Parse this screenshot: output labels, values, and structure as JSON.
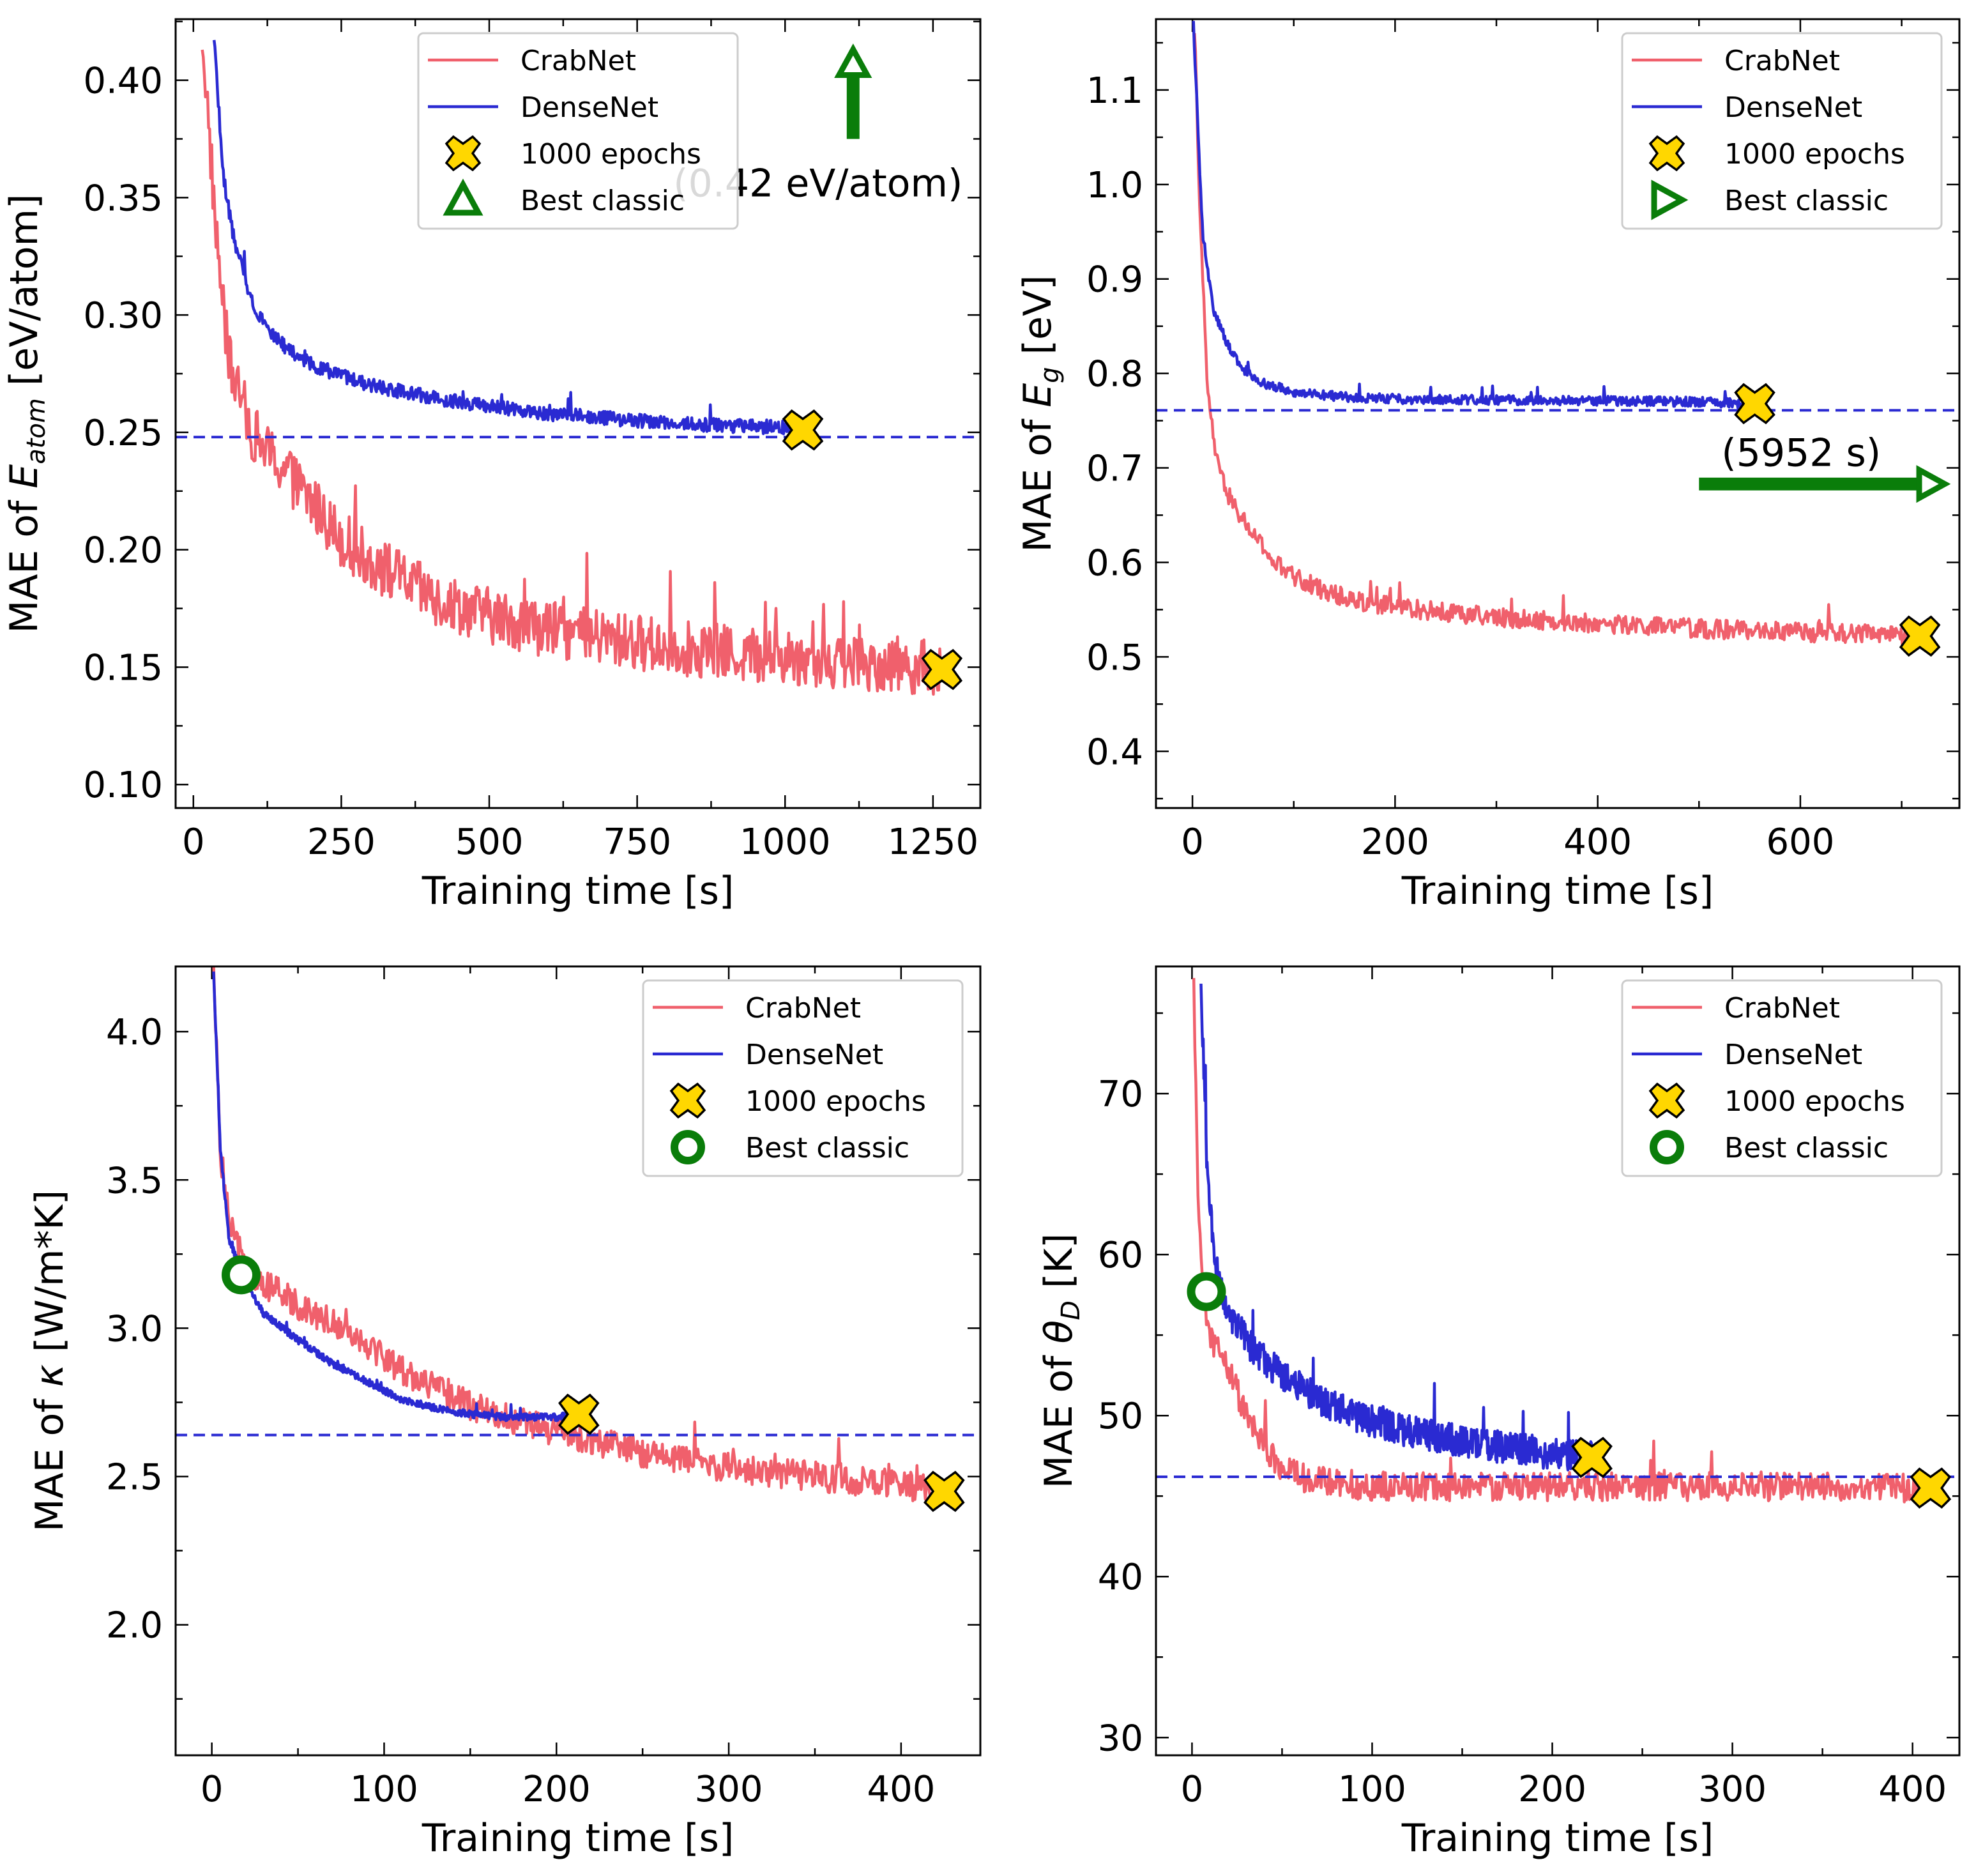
{
  "figure": {
    "colors": {
      "crabnet": "#f0606c",
      "densenet": "#2a2ad2",
      "marker_fill": "#ffd700",
      "classic": "#0a7d0a"
    }
  },
  "chart_data": [
    {
      "type": "line",
      "xlabel": "Training time [s]",
      "ylabel_prefix": "MAE of ",
      "ylabel_sym": "E",
      "ylabel_sub": "atom",
      "ylabel_suffix": " [eV/atom]",
      "xlim": [
        -30,
        1330
      ],
      "ylim": [
        0.09,
        0.426
      ],
      "xticks": [
        0,
        250,
        500,
        750,
        1000,
        1250
      ],
      "xtick_labels": [
        "0",
        "250",
        "500",
        "750",
        "1000",
        "1250"
      ],
      "yticks": [
        0.1,
        0.15,
        0.2,
        0.25,
        0.3,
        0.35,
        0.4
      ],
      "ytick_labels": [
        "0.10",
        "0.15",
        "0.20",
        "0.25",
        "0.30",
        "0.35",
        "0.40"
      ],
      "legend_position": "top-center",
      "legend": [
        "CrabNet",
        "DenseNet",
        "1000 epochs",
        "Best classic"
      ],
      "classic_marker": "triangle-up",
      "series": [
        {
          "name": "CrabNet",
          "x": [
            15,
            40,
            60,
            80,
            100,
            130,
            160,
            200,
            250,
            300,
            350,
            400,
            500,
            600,
            700,
            800,
            900,
            1000,
            1100,
            1200,
            1265
          ],
          "y": [
            0.42,
            0.33,
            0.28,
            0.265,
            0.25,
            0.24,
            0.232,
            0.22,
            0.205,
            0.195,
            0.188,
            0.18,
            0.172,
            0.166,
            0.162,
            0.159,
            0.156,
            0.154,
            0.152,
            0.151,
            0.149
          ],
          "noise": 0.012
        },
        {
          "name": "DenseNet",
          "x": [
            35,
            50,
            70,
            100,
            130,
            160,
            200,
            250,
            300,
            400,
            500,
            600,
            700,
            800,
            900,
            1000,
            1030
          ],
          "y": [
            0.42,
            0.36,
            0.33,
            0.305,
            0.293,
            0.285,
            0.279,
            0.274,
            0.27,
            0.265,
            0.261,
            0.258,
            0.256,
            0.254,
            0.253,
            0.252,
            0.251
          ],
          "noise": 0.003
        }
      ],
      "epochs_markers": [
        {
          "x": 1030,
          "y": 0.251
        },
        {
          "x": 1265,
          "y": 0.149
        }
      ],
      "best_classic_line": 0.248,
      "best_classic_note": "(0.42 eV/atom)",
      "best_classic_arrow": {
        "x": 1115,
        "y_from": 0.375,
        "y_to": 0.412,
        "direction": "up"
      }
    },
    {
      "type": "line",
      "xlabel": "Training time [s]",
      "ylabel_prefix": "MAE of ",
      "ylabel_sym": "E",
      "ylabel_sub": "g",
      "ylabel_suffix": " [eV]",
      "xlim": [
        -36,
        757
      ],
      "ylim": [
        0.34,
        1.175
      ],
      "xticks": [
        0,
        200,
        400,
        600
      ],
      "xtick_labels": [
        "0",
        "200",
        "400",
        "600"
      ],
      "yticks": [
        0.4,
        0.5,
        0.6,
        0.7,
        0.8,
        0.9,
        1.0,
        1.1
      ],
      "ytick_labels": [
        "0.4",
        "0.5",
        "0.6",
        "0.7",
        "0.8",
        "0.9",
        "1.0",
        "1.1"
      ],
      "legend_position": "top-right",
      "legend": [
        "CrabNet",
        "DenseNet",
        "1000 epochs",
        "Best classic"
      ],
      "classic_marker": "triangle-right",
      "series": [
        {
          "name": "CrabNet",
          "x": [
            2,
            8,
            15,
            25,
            40,
            60,
            80,
            100,
            130,
            160,
            200,
            250,
            300,
            400,
            500,
            600,
            700,
            718
          ],
          "y": [
            1.17,
            0.95,
            0.78,
            0.7,
            0.66,
            0.63,
            0.6,
            0.585,
            0.57,
            0.56,
            0.553,
            0.547,
            0.542,
            0.535,
            0.53,
            0.526,
            0.523,
            0.522
          ],
          "noise": 0.01
        },
        {
          "name": "DenseNet",
          "x": [
            1,
            10,
            20,
            35,
            50,
            70,
            100,
            150,
            200,
            300,
            400,
            500,
            555
          ],
          "y": [
            1.17,
            0.95,
            0.87,
            0.83,
            0.805,
            0.79,
            0.78,
            0.775,
            0.773,
            0.772,
            0.771,
            0.77,
            0.768
          ],
          "noise": 0.005
        }
      ],
      "epochs_markers": [
        {
          "x": 555,
          "y": 0.768
        },
        {
          "x": 718,
          "y": 0.522
        }
      ],
      "best_classic_line": 0.761,
      "best_classic_note": "(5952 s)",
      "best_classic_arrow": {
        "y": 0.683,
        "x_from": 500,
        "x_to": 740,
        "direction": "right"
      }
    },
    {
      "type": "line",
      "xlabel": "Training time [s]",
      "ylabel_prefix": "MAE of ",
      "ylabel_sym": "κ",
      "ylabel_sub": "",
      "ylabel_suffix": " [W/m*K]",
      "xlim": [
        -21,
        446
      ],
      "ylim": [
        1.56,
        4.22
      ],
      "xticks": [
        0,
        100,
        200,
        300,
        400
      ],
      "xtick_labels": [
        "0",
        "100",
        "200",
        "300",
        "400"
      ],
      "yticks": [
        2.0,
        2.5,
        3.0,
        3.5,
        4.0
      ],
      "ytick_labels": [
        "2.0",
        "2.5",
        "3.0",
        "3.5",
        "4.0"
      ],
      "legend_position": "top-right",
      "legend": [
        "CrabNet",
        "DenseNet",
        "1000 epochs",
        "Best classic"
      ],
      "classic_marker": "circle",
      "classic_point": {
        "x": 17,
        "y": 3.18
      },
      "series": [
        {
          "name": "CrabNet",
          "x": [
            1,
            5,
            10,
            20,
            30,
            50,
            70,
            90,
            110,
            130,
            150,
            170,
            200,
            250,
            300,
            350,
            400,
            425
          ],
          "y": [
            4.2,
            3.6,
            3.35,
            3.2,
            3.15,
            3.08,
            3.02,
            2.95,
            2.86,
            2.8,
            2.74,
            2.7,
            2.65,
            2.58,
            2.53,
            2.5,
            2.47,
            2.45
          ],
          "noise": 0.05
        },
        {
          "name": "DenseNet",
          "x": [
            1,
            5,
            10,
            20,
            30,
            50,
            70,
            90,
            110,
            130,
            150,
            170,
            200,
            213
          ],
          "y": [
            4.2,
            3.6,
            3.3,
            3.15,
            3.05,
            2.96,
            2.88,
            2.82,
            2.76,
            2.73,
            2.71,
            2.7,
            2.7,
            2.71
          ],
          "noise": 0.012
        }
      ],
      "epochs_markers": [
        {
          "x": 213,
          "y": 2.71
        },
        {
          "x": 425,
          "y": 2.45
        }
      ],
      "best_classic_line": 2.64
    },
    {
      "type": "line",
      "xlabel": "Training time [s]",
      "ylabel_prefix": "MAE of ",
      "ylabel_sym": "θ",
      "ylabel_sub": "D",
      "ylabel_suffix": " [K]",
      "xlim": [
        -20,
        426
      ],
      "ylim": [
        28.9,
        77.9
      ],
      "xticks": [
        0,
        100,
        200,
        300,
        400
      ],
      "xtick_labels": [
        "0",
        "100",
        "200",
        "300",
        "400"
      ],
      "yticks": [
        30,
        40,
        50,
        60,
        70
      ],
      "ytick_labels": [
        "30",
        "40",
        "50",
        "60",
        "70"
      ],
      "legend_position": "top-right",
      "legend": [
        "CrabNet",
        "DenseNet",
        "1000 epochs",
        "Best classic"
      ],
      "classic_marker": "circle",
      "classic_point": {
        "x": 8,
        "y": 57.7
      },
      "series": [
        {
          "name": "CrabNet",
          "x": [
            1,
            3,
            6,
            10,
            20,
            30,
            40,
            50,
            60,
            80,
            100,
            150,
            200,
            250,
            300,
            350,
            410
          ],
          "y": [
            77,
            65,
            58,
            55,
            53,
            50,
            48,
            46.8,
            46.2,
            45.8,
            45.6,
            45.6,
            45.6,
            45.6,
            45.6,
            45.6,
            45.5
          ],
          "noise": 0.9
        },
        {
          "name": "DenseNet",
          "x": [
            5,
            8,
            12,
            18,
            25,
            35,
            50,
            70,
            90,
            110,
            130,
            160,
            190,
            210,
            222
          ],
          "y": [
            77,
            66,
            60,
            57,
            55.5,
            54,
            52.5,
            51,
            50,
            49.3,
            48.8,
            48.2,
            47.8,
            47.5,
            47.4
          ],
          "noise": 1.0
        }
      ],
      "epochs_markers": [
        {
          "x": 222,
          "y": 47.4
        },
        {
          "x": 410,
          "y": 45.5
        }
      ],
      "best_classic_line": 46.2
    }
  ]
}
